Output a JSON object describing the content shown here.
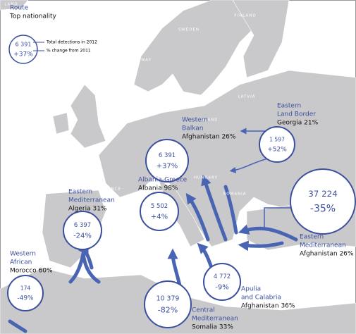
{
  "legend": {
    "route": "Route",
    "nationality": "Top nationality",
    "total": "6 391",
    "change": "+37%",
    "total_note": "Total detections in 2012",
    "change_note": "% change from 2011"
  },
  "countries": [
    "LAND",
    "NORWAY",
    "SWEDEN",
    "FINLAND",
    "LATVIA",
    "GERMANY",
    "POLAND",
    "FRANCE",
    "HUNGARY",
    "ROMANIA"
  ],
  "routes": [
    {
      "name": [
        "Eastern",
        "Land Border"
      ],
      "nationality": "Georgia 21%",
      "total": "1 597",
      "change": "+52%"
    },
    {
      "name": [
        "Western",
        "Balkan"
      ],
      "nationality": "Afghanistan 26%",
      "total": "6 391",
      "change": "+37%"
    },
    {
      "name": [
        "Albania-Greece"
      ],
      "nationality": "Albania 98%",
      "total": "5 502",
      "change": "+4%"
    },
    {
      "name": [
        "Eastern",
        "Mediterranean"
      ],
      "nationality": "Afghanistan 26%",
      "total": "37 224",
      "change": "-35%"
    },
    {
      "name": [
        "Eastern",
        "Mediterranean"
      ],
      "nationality": "Algeria 31%",
      "total": "6 397",
      "change": "-24%"
    },
    {
      "name": [
        "Western",
        "African"
      ],
      "nationality": "Morocco 60%",
      "total": "174",
      "change": "-49%"
    },
    {
      "name": [
        "Central",
        "Mediterranean"
      ],
      "nationality": "Somalia 33%",
      "total": "10 379",
      "change": "-82%"
    },
    {
      "name": [
        "Apulia",
        "and Calabria"
      ],
      "nationality": "Afghanistan 36%",
      "total": "4 772",
      "change": "-9%"
    }
  ]
}
